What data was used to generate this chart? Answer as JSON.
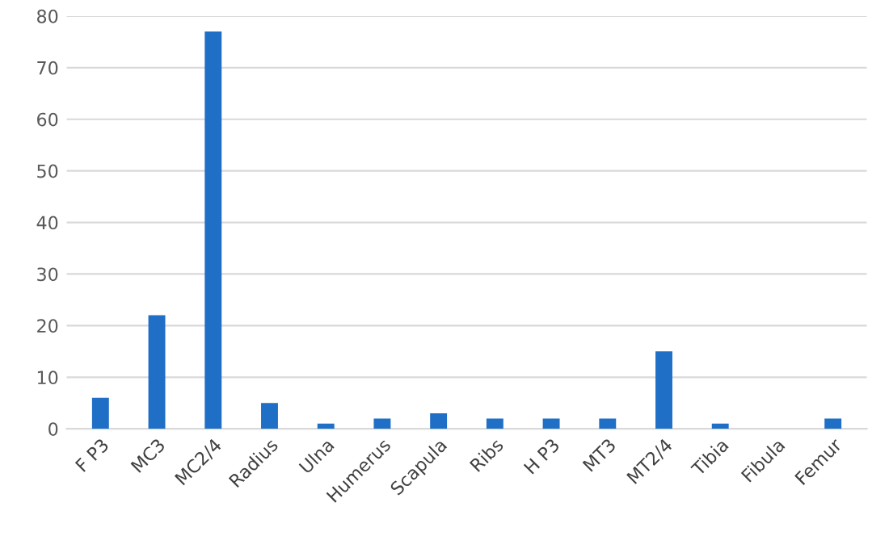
{
  "chart_data": {
    "type": "bar",
    "categories": [
      "F P3",
      "MC3",
      "MC2/4",
      "Radius",
      "Ulna",
      "Humerus",
      "Scapula",
      "Ribs",
      "H P3",
      "MT3",
      "MT2/4",
      "Tibia",
      "Fibula",
      "Femur"
    ],
    "values": [
      6,
      22,
      77,
      5,
      1,
      2,
      3,
      2,
      2,
      2,
      15,
      1,
      0,
      2
    ],
    "color": "#1f6fc6",
    "ylim": [
      0,
      80
    ],
    "yticks": [
      0,
      10,
      20,
      30,
      40,
      50,
      60,
      70,
      80
    ],
    "grid": "y"
  }
}
